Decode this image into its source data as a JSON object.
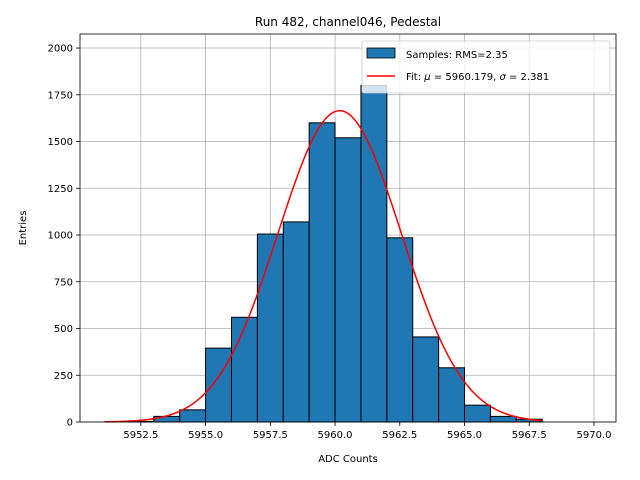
{
  "chart_data": {
    "type": "bar",
    "title": "Run 482, channel046, Pedestal",
    "xlabel": "ADC Counts",
    "ylabel": "Entries",
    "xlim": [
      5950.15,
      5970.85
    ],
    "ylim": [
      0,
      2075
    ],
    "grid": true,
    "legend_position": "top-right",
    "x_ticks": [
      5952.5,
      5955.0,
      5957.5,
      5960.0,
      5962.5,
      5965.0,
      5967.5,
      5970.0
    ],
    "x_tick_labels": [
      "5952.5",
      "5955.0",
      "5957.5",
      "5960.0",
      "5962.5",
      "5965.0",
      "5967.5",
      "5970.0"
    ],
    "y_ticks": [
      0,
      250,
      500,
      750,
      1000,
      1250,
      1500,
      1750,
      2000
    ],
    "y_tick_labels": [
      "0",
      "250",
      "500",
      "750",
      "1000",
      "1250",
      "1500",
      "1750",
      "2000"
    ],
    "bin_width": 1,
    "bin_edges_start": [
      5952,
      5953,
      5954,
      5955,
      5956,
      5957,
      5958,
      5959,
      5960,
      5961,
      5962,
      5963,
      5964,
      5965,
      5966,
      5967
    ],
    "bin_values": [
      3,
      30,
      65,
      395,
      560,
      1005,
      1070,
      1600,
      1520,
      1800,
      985,
      455,
      290,
      90,
      30,
      15
    ],
    "bar_color": "#1f77b4",
    "bar_edge_color": "#000000",
    "fit": {
      "mu": 5960.179,
      "sigma": 2.381,
      "amplitude": 1665,
      "x_range": [
        5951.1,
        5968.0
      ],
      "color": "#ff0000"
    },
    "legend": {
      "samples_label": "Samples: RMS=2.35",
      "fit_prefix": "Fit: ",
      "mu_symbol": "μ",
      "mu_text": " = 5960.179, ",
      "sigma_symbol": "σ",
      "sigma_text": " = 2.381"
    }
  }
}
